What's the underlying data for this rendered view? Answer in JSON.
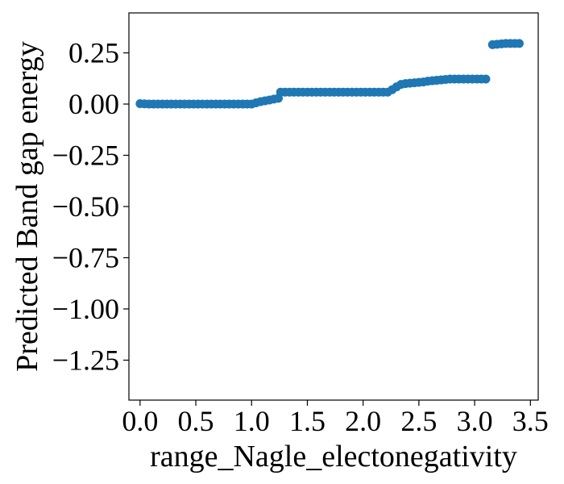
{
  "chart_data": {
    "type": "scatter",
    "title": "",
    "xlabel": "range_Nagle_electonegativity",
    "ylabel": "Predicted Band gap energy",
    "xlim": [
      -0.1,
      3.57
    ],
    "ylim": [
      -1.445,
      0.445
    ],
    "xticks": [
      0.0,
      0.5,
      1.0,
      1.5,
      2.0,
      2.5,
      3.0,
      3.5
    ],
    "xtick_labels": [
      "0.0",
      "0.5",
      "1.0",
      "1.5",
      "2.0",
      "2.5",
      "3.0",
      "3.5"
    ],
    "yticks": [
      0.25,
      0.0,
      -0.25,
      -0.5,
      -0.75,
      -1.0,
      -1.25
    ],
    "ytick_labels": [
      "0.25",
      "0.00",
      "−0.25",
      "−0.50",
      "−0.75",
      "−1.00",
      "−1.25"
    ],
    "grid": false,
    "marker_color": "#1f77b4",
    "series": [
      {
        "points": [
          [
            0.0,
            0.002
          ],
          [
            0.04,
            0.001
          ],
          [
            0.08,
            0.0
          ],
          [
            0.12,
            0.0
          ],
          [
            0.16,
            0.0
          ],
          [
            0.2,
            0.0
          ],
          [
            0.24,
            0.0
          ],
          [
            0.28,
            0.0
          ],
          [
            0.32,
            0.0
          ],
          [
            0.36,
            0.0
          ],
          [
            0.4,
            0.0
          ],
          [
            0.44,
            0.0
          ],
          [
            0.48,
            0.0
          ],
          [
            0.52,
            0.0
          ],
          [
            0.56,
            0.0
          ],
          [
            0.6,
            0.0
          ],
          [
            0.64,
            0.0
          ],
          [
            0.68,
            0.0
          ],
          [
            0.72,
            0.0
          ],
          [
            0.76,
            0.0
          ],
          [
            0.8,
            0.0
          ],
          [
            0.84,
            0.0
          ],
          [
            0.88,
            0.0
          ],
          [
            0.92,
            0.0
          ],
          [
            0.96,
            0.0
          ],
          [
            1.0,
            0.0
          ],
          [
            1.04,
            0.006
          ],
          [
            1.08,
            0.012
          ],
          [
            1.12,
            0.016
          ],
          [
            1.16,
            0.02
          ],
          [
            1.2,
            0.024
          ],
          [
            1.24,
            0.028
          ],
          [
            1.26,
            0.058
          ],
          [
            1.3,
            0.058
          ],
          [
            1.34,
            0.058
          ],
          [
            1.38,
            0.058
          ],
          [
            1.42,
            0.058
          ],
          [
            1.46,
            0.058
          ],
          [
            1.5,
            0.058
          ],
          [
            1.54,
            0.058
          ],
          [
            1.58,
            0.058
          ],
          [
            1.62,
            0.058
          ],
          [
            1.66,
            0.058
          ],
          [
            1.7,
            0.058
          ],
          [
            1.74,
            0.058
          ],
          [
            1.78,
            0.058
          ],
          [
            1.82,
            0.058
          ],
          [
            1.86,
            0.058
          ],
          [
            1.9,
            0.058
          ],
          [
            1.94,
            0.058
          ],
          [
            1.98,
            0.058
          ],
          [
            2.02,
            0.058
          ],
          [
            2.06,
            0.058
          ],
          [
            2.1,
            0.058
          ],
          [
            2.14,
            0.058
          ],
          [
            2.18,
            0.058
          ],
          [
            2.22,
            0.058
          ],
          [
            2.26,
            0.07
          ],
          [
            2.3,
            0.084
          ],
          [
            2.34,
            0.096
          ],
          [
            2.38,
            0.1
          ],
          [
            2.42,
            0.102
          ],
          [
            2.46,
            0.104
          ],
          [
            2.5,
            0.106
          ],
          [
            2.54,
            0.108
          ],
          [
            2.58,
            0.112
          ],
          [
            2.62,
            0.114
          ],
          [
            2.66,
            0.116
          ],
          [
            2.7,
            0.118
          ],
          [
            2.74,
            0.12
          ],
          [
            2.78,
            0.122
          ],
          [
            2.82,
            0.122
          ],
          [
            2.86,
            0.122
          ],
          [
            2.9,
            0.122
          ],
          [
            2.94,
            0.122
          ],
          [
            2.98,
            0.122
          ],
          [
            3.02,
            0.122
          ],
          [
            3.06,
            0.122
          ],
          [
            3.1,
            0.122
          ],
          [
            3.16,
            0.29
          ],
          [
            3.2,
            0.292
          ],
          [
            3.24,
            0.294
          ],
          [
            3.28,
            0.296
          ],
          [
            3.32,
            0.296
          ],
          [
            3.36,
            0.296
          ],
          [
            3.4,
            0.296
          ]
        ]
      }
    ]
  }
}
